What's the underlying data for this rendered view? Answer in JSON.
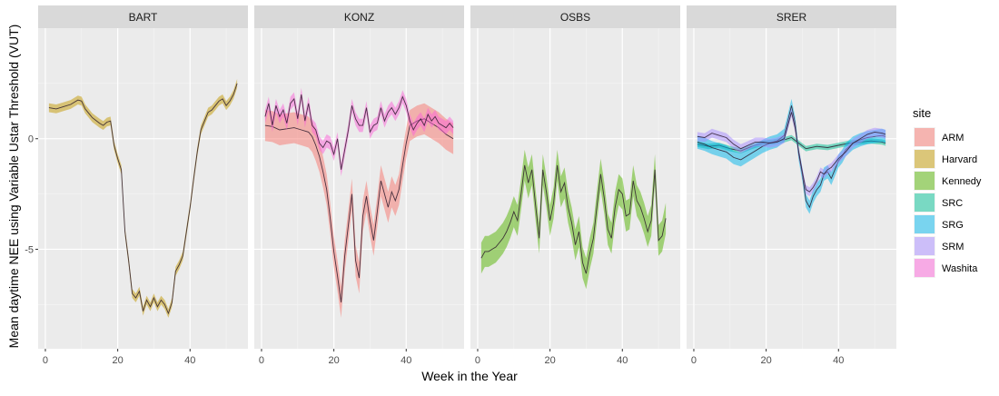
{
  "chart_data": {
    "type": "line",
    "xlabel": "Week in the Year",
    "ylabel": "Mean daytime NEE using Variable Ustar Threshold (VUT)",
    "xlim": [
      -2,
      56
    ],
    "ylim": [
      -9.5,
      5.0
    ],
    "xticks": [
      0,
      20,
      40
    ],
    "yticks": [
      0,
      -5
    ],
    "ytick_labels": [
      "0",
      "-5"
    ],
    "grid": true,
    "legend": {
      "title": "site",
      "position": "right",
      "entries": [
        {
          "label": "ARM",
          "color": "#f8766d"
        },
        {
          "label": "Harvard",
          "color": "#c49a00"
        },
        {
          "label": "Kennedy",
          "color": "#53b400"
        },
        {
          "label": "SRC",
          "color": "#00c094"
        },
        {
          "label": "SRG",
          "color": "#00b6eb"
        },
        {
          "label": "SRM",
          "color": "#a58aff"
        },
        {
          "label": "Washita",
          "color": "#fb61d7"
        }
      ]
    },
    "panels": [
      {
        "strip": "BART",
        "series": [
          {
            "site": "Harvard",
            "color": "#c49a00",
            "x": [
              1,
              3,
              5,
              7,
              9,
              10,
              11,
              13,
              15,
              16,
              17,
              18,
              19,
              20,
              21,
              22,
              23,
              24,
              25,
              26,
              27,
              28,
              29,
              30,
              31,
              32,
              33,
              34,
              35,
              36,
              37,
              38,
              39,
              40,
              41,
              42,
              43,
              44,
              45,
              46,
              47,
              48,
              49,
              50,
              51,
              52,
              53
            ],
            "y": [
              1.4,
              1.35,
              1.45,
              1.55,
              1.75,
              1.7,
              1.35,
              0.95,
              0.7,
              0.6,
              0.75,
              0.8,
              -0.3,
              -0.9,
              -1.4,
              -4.2,
              -5.5,
              -7.0,
              -7.2,
              -6.9,
              -7.8,
              -7.3,
              -7.6,
              -7.2,
              -7.6,
              -7.3,
              -7.5,
              -7.9,
              -7.4,
              -6.0,
              -5.7,
              -5.3,
              -4.2,
              -3.1,
              -1.8,
              -0.6,
              0.4,
              0.8,
              1.2,
              1.3,
              1.5,
              1.7,
              1.8,
              1.5,
              1.7,
              2.0,
              2.5
            ],
            "spread": 0.2
          }
        ]
      },
      {
        "strip": "KONZ",
        "series": [
          {
            "site": "ARM",
            "color": "#f8766d",
            "x": [
              1,
              3,
              5,
              7,
              9,
              11,
              13,
              14,
              15,
              16,
              17,
              18,
              19,
              20,
              21,
              22,
              23,
              24,
              25,
              26,
              27,
              28,
              29,
              30,
              31,
              32,
              33,
              34,
              35,
              36,
              37,
              38,
              39,
              40,
              41,
              43,
              45,
              47,
              49,
              51,
              53
            ],
            "y": [
              0.6,
              0.55,
              0.4,
              0.45,
              0.5,
              0.4,
              0.3,
              0.1,
              -0.3,
              -0.8,
              -1.5,
              -2.3,
              -3.6,
              -5.1,
              -6.2,
              -7.4,
              -5.3,
              -3.9,
              -2.5,
              -5.5,
              -6.3,
              -3.5,
              -2.6,
              -3.7,
              -4.6,
              -3.3,
              -1.9,
              -2.5,
              -3.1,
              -2.4,
              -2.8,
              -2.3,
              -1.2,
              -0.2,
              0.6,
              0.8,
              0.9,
              0.7,
              0.5,
              0.2,
              0.0
            ],
            "spread": 0.7
          },
          {
            "site": "Washita",
            "color": "#fb61d7",
            "x": [
              1,
              2,
              3,
              4,
              5,
              6,
              7,
              8,
              9,
              10,
              11,
              12,
              13,
              14,
              15,
              16,
              17,
              18,
              19,
              20,
              21,
              22,
              23,
              24,
              25,
              26,
              27,
              28,
              29,
              30,
              31,
              32,
              33,
              34,
              35,
              36,
              37,
              38,
              39,
              40,
              41,
              42,
              43,
              44,
              45,
              46,
              47,
              48,
              49,
              50,
              51,
              52,
              53
            ],
            "y": [
              1.0,
              1.6,
              0.6,
              1.5,
              1.0,
              1.3,
              0.7,
              1.6,
              1.8,
              0.9,
              2.0,
              0.8,
              1.6,
              0.6,
              0.4,
              -0.2,
              -0.4,
              -0.1,
              -0.2,
              -0.7,
              0.0,
              -1.4,
              -0.5,
              0.4,
              1.5,
              0.9,
              0.6,
              0.6,
              1.4,
              0.3,
              0.6,
              0.7,
              1.4,
              0.8,
              1.2,
              1.4,
              1.1,
              1.4,
              1.9,
              1.5,
              0.8,
              0.4,
              0.7,
              0.9,
              0.6,
              1.1,
              0.8,
              1.0,
              0.7,
              0.6,
              0.5,
              0.7,
              0.5
            ],
            "spread": 0.3
          }
        ]
      },
      {
        "strip": "OSBS",
        "series": [
          {
            "site": "Kennedy",
            "color": "#53b400",
            "x": [
              1,
              2,
              3,
              4,
              5,
              6,
              7,
              8,
              9,
              10,
              11,
              12,
              13,
              14,
              15,
              16,
              17,
              18,
              19,
              20,
              21,
              22,
              23,
              24,
              25,
              26,
              27,
              28,
              29,
              30,
              31,
              32,
              33,
              34,
              35,
              36,
              37,
              38,
              39,
              40,
              41,
              42,
              43,
              44,
              45,
              46,
              47,
              48,
              49,
              50,
              51,
              52
            ],
            "y": [
              -5.4,
              -5.1,
              -5.1,
              -5.0,
              -4.9,
              -4.7,
              -4.5,
              -4.2,
              -3.8,
              -3.3,
              -3.7,
              -2.5,
              -1.2,
              -2.0,
              -1.4,
              -3.0,
              -4.5,
              -1.4,
              -2.4,
              -3.7,
              -2.9,
              -1.2,
              -2.4,
              -2.0,
              -3.1,
              -3.8,
              -4.8,
              -4.2,
              -5.6,
              -6.1,
              -5.2,
              -4.5,
              -3.0,
              -1.6,
              -2.7,
              -4.1,
              -4.5,
              -3.1,
              -2.3,
              -2.5,
              -3.5,
              -3.4,
              -1.9,
              -2.8,
              -3.1,
              -3.6,
              -4.2,
              -3.7,
              -1.4,
              -4.6,
              -4.4,
              -3.6
            ],
            "spread": 0.7
          }
        ]
      },
      {
        "strip": "SRER",
        "series": [
          {
            "site": "SRC",
            "color": "#00c094",
            "x": [
              1,
              4,
              7,
              10,
              13,
              16,
              19,
              22,
              25,
              27,
              29,
              31,
              34,
              37,
              40,
              43,
              46,
              49,
              52,
              53
            ],
            "y": [
              -0.25,
              -0.35,
              -0.3,
              -0.45,
              -0.55,
              -0.35,
              -0.2,
              -0.15,
              -0.05,
              0.05,
              -0.2,
              -0.45,
              -0.35,
              -0.4,
              -0.3,
              -0.2,
              -0.15,
              -0.1,
              -0.15,
              -0.2
            ],
            "spread": 0.12
          },
          {
            "site": "SRG",
            "color": "#00b6eb",
            "x": [
              1,
              3,
              5,
              7,
              9,
              11,
              13,
              15,
              17,
              19,
              21,
              23,
              25,
              26,
              27,
              28,
              29,
              30,
              31,
              32,
              33,
              34,
              35,
              36,
              37,
              38,
              39,
              40,
              41,
              42,
              44,
              46,
              48,
              50,
              52,
              53
            ],
            "y": [
              -0.15,
              -0.25,
              -0.4,
              -0.5,
              -0.6,
              -0.85,
              -0.95,
              -0.75,
              -0.55,
              -0.35,
              -0.2,
              -0.1,
              0.15,
              0.8,
              1.5,
              0.7,
              -0.7,
              -1.6,
              -2.8,
              -3.1,
              -2.6,
              -2.3,
              -2.1,
              -1.6,
              -1.5,
              -1.8,
              -1.4,
              -1.0,
              -0.8,
              -0.5,
              -0.2,
              -0.05,
              0.05,
              0.1,
              0.15,
              0.1
            ],
            "spread": 0.3
          },
          {
            "site": "SRM",
            "color": "#a58aff",
            "x": [
              1,
              3,
              5,
              7,
              9,
              11,
              13,
              15,
              17,
              19,
              21,
              23,
              25,
              26,
              27,
              28,
              29,
              30,
              31,
              32,
              33,
              34,
              35,
              36,
              37,
              38,
              40,
              42,
              44,
              46,
              48,
              50,
              52,
              53
            ],
            "y": [
              0.1,
              0.05,
              0.25,
              0.15,
              0.05,
              -0.25,
              -0.45,
              -0.3,
              -0.15,
              -0.15,
              -0.2,
              -0.15,
              0.0,
              0.6,
              1.2,
              0.5,
              -0.6,
              -1.5,
              -2.3,
              -2.4,
              -2.2,
              -1.9,
              -1.5,
              -1.6,
              -1.4,
              -1.3,
              -0.9,
              -0.6,
              -0.2,
              0.0,
              0.2,
              0.3,
              0.25,
              0.2
            ],
            "spread": 0.2
          }
        ]
      }
    ]
  }
}
